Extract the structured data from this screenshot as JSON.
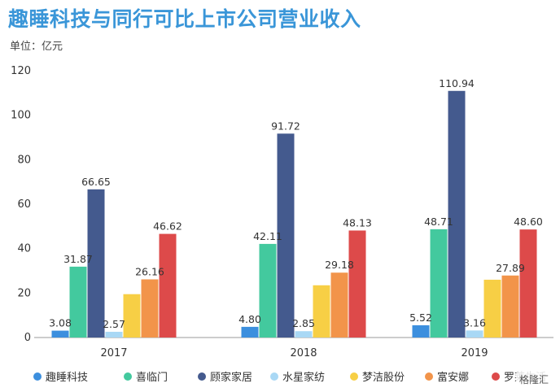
{
  "title": "趣睡科技与同行可比上市公司营业收入",
  "unit": "单位：亿元",
  "chart_data": {
    "type": "bar",
    "categories": [
      "2017",
      "2018",
      "2019"
    ],
    "ylim": [
      0,
      120
    ],
    "yticks": [
      0,
      20,
      40,
      60,
      80,
      100,
      120
    ],
    "grid": false,
    "legend_position": "bottom",
    "series": [
      {
        "name": "趣睡科技",
        "color": "#3c8fde",
        "values": [
          3.08,
          4.8,
          5.52
        ],
        "labels": [
          "3.08",
          "4.80",
          "5.52"
        ]
      },
      {
        "name": "喜临门",
        "color": "#43c99e",
        "values": [
          31.87,
          42.11,
          48.71
        ],
        "labels": [
          "31.87",
          "42.11",
          "48.71"
        ]
      },
      {
        "name": "顾家家居",
        "color": "#445a8e",
        "values": [
          66.65,
          91.72,
          110.94
        ],
        "labels": [
          "66.65",
          "91.72",
          "110.94"
        ]
      },
      {
        "name": "水星家纺",
        "color": "#a9d8f5",
        "values": [
          2.57,
          2.85,
          3.16
        ],
        "labels": [
          "2.57",
          "2.85",
          "3.16"
        ]
      },
      {
        "name": "梦洁股份",
        "color": "#f7cf45",
        "values": [
          19.5,
          23.5,
          26.0
        ],
        "labels": [
          "",
          "",
          ""
        ]
      },
      {
        "name": "富安娜",
        "color": "#f2944a",
        "values": [
          26.16,
          29.18,
          27.89
        ],
        "labels": [
          "26.16",
          "29.18",
          "27.89"
        ]
      },
      {
        "name": "罗莱生活",
        "color": "#dd4a4a",
        "values": [
          46.62,
          48.13,
          48.6
        ],
        "labels": [
          "46.62",
          "48.13",
          "48.60"
        ]
      }
    ]
  },
  "watermark": "格隆汇"
}
